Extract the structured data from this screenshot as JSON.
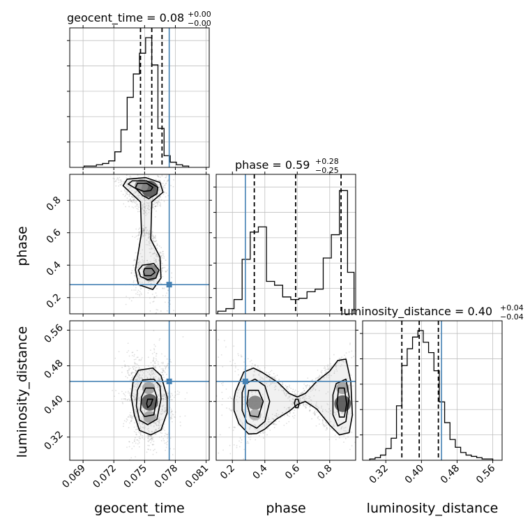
{
  "chart_data": {
    "type": "corner",
    "parameters": [
      "geocent_time",
      "phase",
      "luminosity_distance"
    ],
    "truth": {
      "geocent_time": 0.0774,
      "phase": 0.28,
      "luminosity_distance": 0.445
    },
    "colors": {
      "truth": "#4682b4",
      "hist": "#000000",
      "grid": "#c0c0c0",
      "scatter": "#7a7a7a"
    },
    "grid": true,
    "titles": [
      {
        "param": "geocent_time",
        "name": "geocent_time",
        "value": "0.08",
        "plus": "+0.00",
        "minus": "−0.00"
      },
      {
        "param": "phase",
        "name": "phase",
        "value": "0.59",
        "plus": "+0.28",
        "minus": "−0.25"
      },
      {
        "param": "luminosity_distance",
        "name": "luminosity_distance",
        "value": "0.40",
        "plus": "+0.04",
        "minus": "−0.04"
      }
    ],
    "axes": {
      "geocent_time": {
        "label": "geocent_time",
        "range": [
          0.0677,
          0.0813
        ],
        "ticks": [
          0.069,
          0.072,
          0.075,
          0.078,
          0.081
        ],
        "tick_labels": [
          "0.069",
          "0.072",
          "0.075",
          "0.078",
          "0.081"
        ]
      },
      "phase": {
        "label": "phase",
        "range": [
          0.1,
          0.96
        ],
        "ticks": [
          0.2,
          0.4,
          0.6,
          0.8
        ],
        "tick_labels": [
          "0.2",
          "0.4",
          "0.6",
          "0.8"
        ]
      },
      "luminosity_distance": {
        "label": "luminosity_distance",
        "range": [
          0.268,
          0.581
        ],
        "ticks": [
          0.32,
          0.4,
          0.48,
          0.56
        ],
        "tick_labels": [
          "0.32",
          "0.40",
          "0.48",
          "0.56"
        ]
      }
    },
    "quantiles": {
      "geocent_time": [
        0.0746,
        0.0757,
        0.0767
      ],
      "phase": [
        0.335,
        0.59,
        0.87
      ],
      "luminosity_distance": [
        0.356,
        0.395,
        0.438
      ]
    },
    "histograms": {
      "geocent_time": {
        "edges": [
          0.0691,
          0.0697,
          0.0703,
          0.0709,
          0.0715,
          0.0721,
          0.0727,
          0.0733,
          0.0739,
          0.0745,
          0.0751,
          0.0757,
          0.0763,
          0.0769,
          0.0775,
          0.0781,
          0.0787,
          0.0793
        ],
        "values": [
          0.01,
          0.01,
          0.02,
          0.03,
          0.05,
          0.12,
          0.29,
          0.54,
          0.72,
          0.88,
          1.0,
          0.79,
          0.3,
          0.09,
          0.04,
          0.02,
          0.01
        ]
      },
      "phase": {
        "edges": [
          0.11,
          0.16,
          0.21,
          0.26,
          0.31,
          0.36,
          0.41,
          0.46,
          0.51,
          0.56,
          0.61,
          0.66,
          0.71,
          0.76,
          0.81,
          0.86,
          0.91,
          0.95
        ],
        "values": [
          0.02,
          0.04,
          0.11,
          0.42,
          0.63,
          0.67,
          0.25,
          0.22,
          0.13,
          0.11,
          0.12,
          0.17,
          0.19,
          0.43,
          0.61,
          0.95,
          0.32
        ]
      },
      "luminosity_distance": {
        "edges": [
          0.284,
          0.296,
          0.308,
          0.32,
          0.332,
          0.344,
          0.356,
          0.368,
          0.38,
          0.392,
          0.404,
          0.416,
          0.428,
          0.44,
          0.452,
          0.464,
          0.476,
          0.488,
          0.5,
          0.512,
          0.524,
          0.536,
          0.548,
          0.56
        ],
        "values": [
          0.01,
          0.02,
          0.04,
          0.09,
          0.17,
          0.42,
          0.73,
          0.86,
          0.95,
          1.0,
          0.91,
          0.83,
          0.69,
          0.45,
          0.29,
          0.16,
          0.1,
          0.06,
          0.04,
          0.03,
          0.02,
          0.01,
          0.01
        ]
      }
    },
    "contours": [
      {
        "x": "geocent_time",
        "y": "phase",
        "levels": [
          {
            "x": [
              0.0733,
              0.0751,
              0.0765,
              0.0768,
              0.0757,
              0.0756,
              0.0765,
              0.0766,
              0.0758,
              0.0744,
              0.0741,
              0.0747,
              0.0746,
              0.0729
            ],
            "y": [
              0.93,
              0.94,
              0.91,
              0.85,
              0.79,
              0.56,
              0.45,
              0.32,
              0.25,
              0.28,
              0.37,
              0.6,
              0.79,
              0.89
            ]
          },
          {
            "x": [
              0.0738,
              0.0752,
              0.0763,
              0.0762,
              0.0754,
              0.0748,
              0.0742,
              0.0734
            ],
            "y": [
              0.92,
              0.92,
              0.88,
              0.84,
              0.81,
              0.83,
              0.87,
              0.9
            ]
          },
          {
            "x": [
              0.0748,
              0.0759,
              0.0764,
              0.0761,
              0.0753,
              0.0746,
              0.0744
            ],
            "y": [
              0.4,
              0.41,
              0.37,
              0.32,
              0.31,
              0.33,
              0.37
            ]
          },
          {
            "x": [
              0.0743,
              0.0752,
              0.0758,
              0.0756,
              0.0749,
              0.0741
            ],
            "y": [
              0.905,
              0.905,
              0.88,
              0.86,
              0.855,
              0.875
            ]
          },
          {
            "x": [
              0.075,
              0.0757,
              0.076,
              0.0756,
              0.075,
              0.0749
            ],
            "y": [
              0.38,
              0.38,
              0.355,
              0.335,
              0.335,
              0.36
            ]
          }
        ],
        "density": [
          {
            "x": 0.0755,
            "y": 0.87,
            "level": 1.0
          },
          {
            "x": 0.0747,
            "y": 0.89,
            "level": 0.55
          },
          {
            "x": 0.0756,
            "y": 0.36,
            "level": 0.7
          },
          {
            "x": 0.0755,
            "y": 0.34,
            "level": 0.55
          }
        ]
      },
      {
        "x": "geocent_time",
        "y": "luminosity_distance",
        "levels": [
          {
            "x": [
              0.0744,
              0.0758,
              0.0766,
              0.0772,
              0.0772,
              0.0766,
              0.0756,
              0.0745,
              0.074,
              0.0737,
              0.0739
            ],
            "y": [
              0.47,
              0.475,
              0.458,
              0.41,
              0.375,
              0.336,
              0.325,
              0.335,
              0.37,
              0.41,
              0.45
            ]
          },
          {
            "x": [
              0.0748,
              0.0759,
              0.0765,
              0.0766,
              0.0762,
              0.0753,
              0.0745,
              0.0742,
              0.0743
            ],
            "y": [
              0.448,
              0.45,
              0.435,
              0.405,
              0.36,
              0.348,
              0.358,
              0.39,
              0.425
            ]
          },
          {
            "x": [
              0.0751,
              0.0759,
              0.0762,
              0.0759,
              0.075,
              0.0746,
              0.0747
            ],
            "y": [
              0.43,
              0.43,
              0.41,
              0.37,
              0.366,
              0.38,
              0.41
            ]
          },
          {
            "x": [
              0.0753,
              0.0758,
              0.0756,
              0.0753,
              0.0752
            ],
            "y": [
              0.405,
              0.405,
              0.392,
              0.386,
              0.395
            ]
          }
        ],
        "density": [
          {
            "x": 0.0755,
            "y": 0.398,
            "level": 1.0
          },
          {
            "x": 0.0754,
            "y": 0.43,
            "level": 0.45
          },
          {
            "x": 0.0755,
            "y": 0.365,
            "level": 0.45
          }
        ]
      },
      {
        "x": "phase",
        "y": "luminosity_distance",
        "levels": [
          {
            "x": [
              0.22,
              0.27,
              0.33,
              0.38,
              0.48,
              0.55,
              0.6,
              0.65,
              0.72,
              0.8,
              0.85,
              0.9,
              0.93,
              0.94,
              0.92,
              0.86,
              0.8,
              0.72,
              0.65,
              0.6,
              0.55,
              0.47,
              0.4,
              0.35,
              0.3,
              0.24,
              0.21,
              0.21
            ],
            "y": [
              0.423,
              0.466,
              0.475,
              0.466,
              0.443,
              0.418,
              0.41,
              0.418,
              0.445,
              0.468,
              0.492,
              0.495,
              0.445,
              0.37,
              0.33,
              0.325,
              0.347,
              0.383,
              0.4,
              0.393,
              0.378,
              0.36,
              0.338,
              0.328,
              0.327,
              0.35,
              0.38,
              0.405
            ]
          },
          {
            "x": [
              0.28,
              0.34,
              0.4,
              0.43,
              0.4,
              0.35,
              0.29,
              0.26,
              0.26
            ],
            "y": [
              0.44,
              0.45,
              0.435,
              0.4,
              0.355,
              0.34,
              0.352,
              0.38,
              0.42
            ]
          },
          {
            "x": [
              0.84,
              0.9,
              0.92,
              0.9,
              0.85,
              0.82,
              0.82
            ],
            "y": [
              0.44,
              0.45,
              0.41,
              0.355,
              0.345,
              0.37,
              0.415
            ]
          },
          {
            "x": [
              0.3,
              0.36,
              0.39,
              0.36,
              0.31,
              0.29
            ],
            "y": [
              0.425,
              0.425,
              0.4,
              0.365,
              0.368,
              0.395
            ]
          },
          {
            "x": [
              0.855,
              0.89,
              0.905,
              0.89,
              0.86,
              0.845
            ],
            "y": [
              0.43,
              0.43,
              0.395,
              0.365,
              0.365,
              0.395
            ]
          },
          {
            "x": [
              0.59,
              0.605,
              0.612,
              0.605,
              0.59,
              0.582
            ],
            "y": [
              0.405,
              0.405,
              0.396,
              0.386,
              0.386,
              0.396
            ]
          }
        ],
        "density": [
          {
            "x": 0.88,
            "y": 0.395,
            "level": 1.0
          },
          {
            "x": 0.34,
            "y": 0.397,
            "level": 0.7
          },
          {
            "x": 0.88,
            "y": 0.43,
            "level": 0.45
          },
          {
            "x": 0.34,
            "y": 0.37,
            "level": 0.35
          }
        ]
      }
    ]
  }
}
